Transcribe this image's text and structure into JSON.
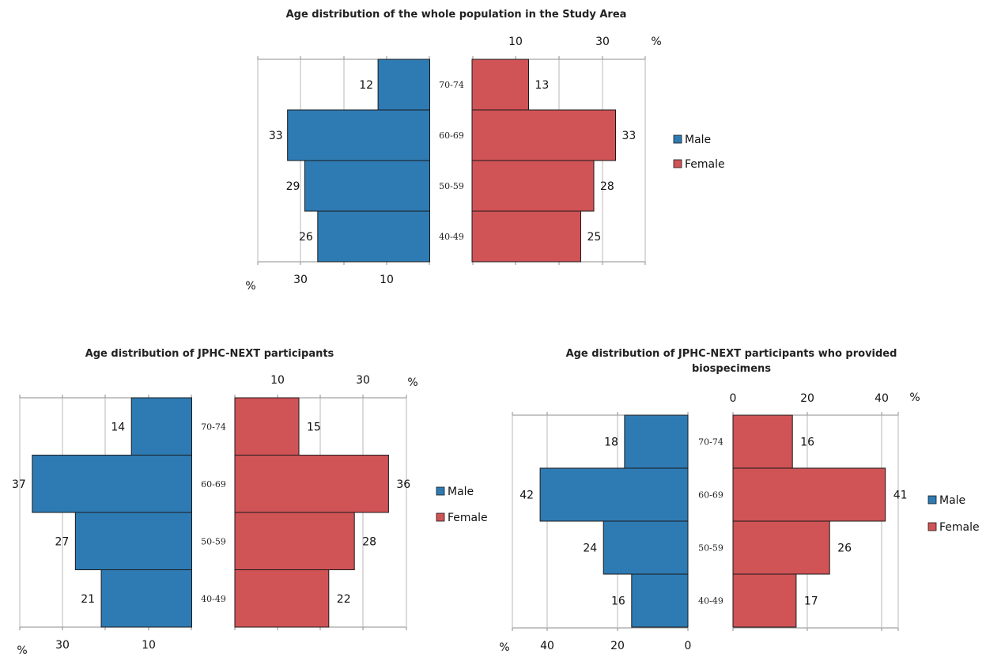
{
  "colors": {
    "male": "#2e7bb4",
    "female": "#d05356"
  },
  "chart_data": [
    {
      "type": "bar",
      "title": "Age distribution of the whole population in the Study Area",
      "categories": [
        "70-74",
        "60-69",
        "50-59",
        "40-49"
      ],
      "series": [
        {
          "name": "Male",
          "values": [
            12,
            33,
            29,
            26
          ]
        },
        {
          "name": "Female",
          "values": [
            13,
            33,
            28,
            25
          ]
        }
      ],
      "male_ticks": [
        "30",
        "10"
      ],
      "female_ticks": [
        "10",
        "30"
      ],
      "unit": "%",
      "legend": "right",
      "grid": true
    },
    {
      "type": "bar",
      "title": "Age distribution of JPHC-NEXT participants",
      "categories": [
        "70-74",
        "60-69",
        "50-59",
        "40-49"
      ],
      "series": [
        {
          "name": "Male",
          "values": [
            14,
            37,
            27,
            21
          ]
        },
        {
          "name": "Female",
          "values": [
            15,
            36,
            28,
            22
          ]
        }
      ],
      "male_ticks": [
        "30",
        "10"
      ],
      "female_ticks": [
        "10",
        "30"
      ],
      "unit": "%",
      "legend": "right",
      "grid": true
    },
    {
      "type": "bar",
      "title": "Age distribution of JPHC-NEXT participants who provided biospecimens",
      "categories": [
        "70-74",
        "60-69",
        "50-59",
        "40-49"
      ],
      "series": [
        {
          "name": "Male",
          "values": [
            18,
            42,
            24,
            16
          ]
        },
        {
          "name": "Female",
          "values": [
            16,
            41,
            26,
            17
          ]
        }
      ],
      "male_ticks": [
        "40",
        "20",
        "0"
      ],
      "female_ticks": [
        "0",
        "20",
        "40"
      ],
      "unit": "%",
      "legend": "right",
      "grid": true
    }
  ]
}
